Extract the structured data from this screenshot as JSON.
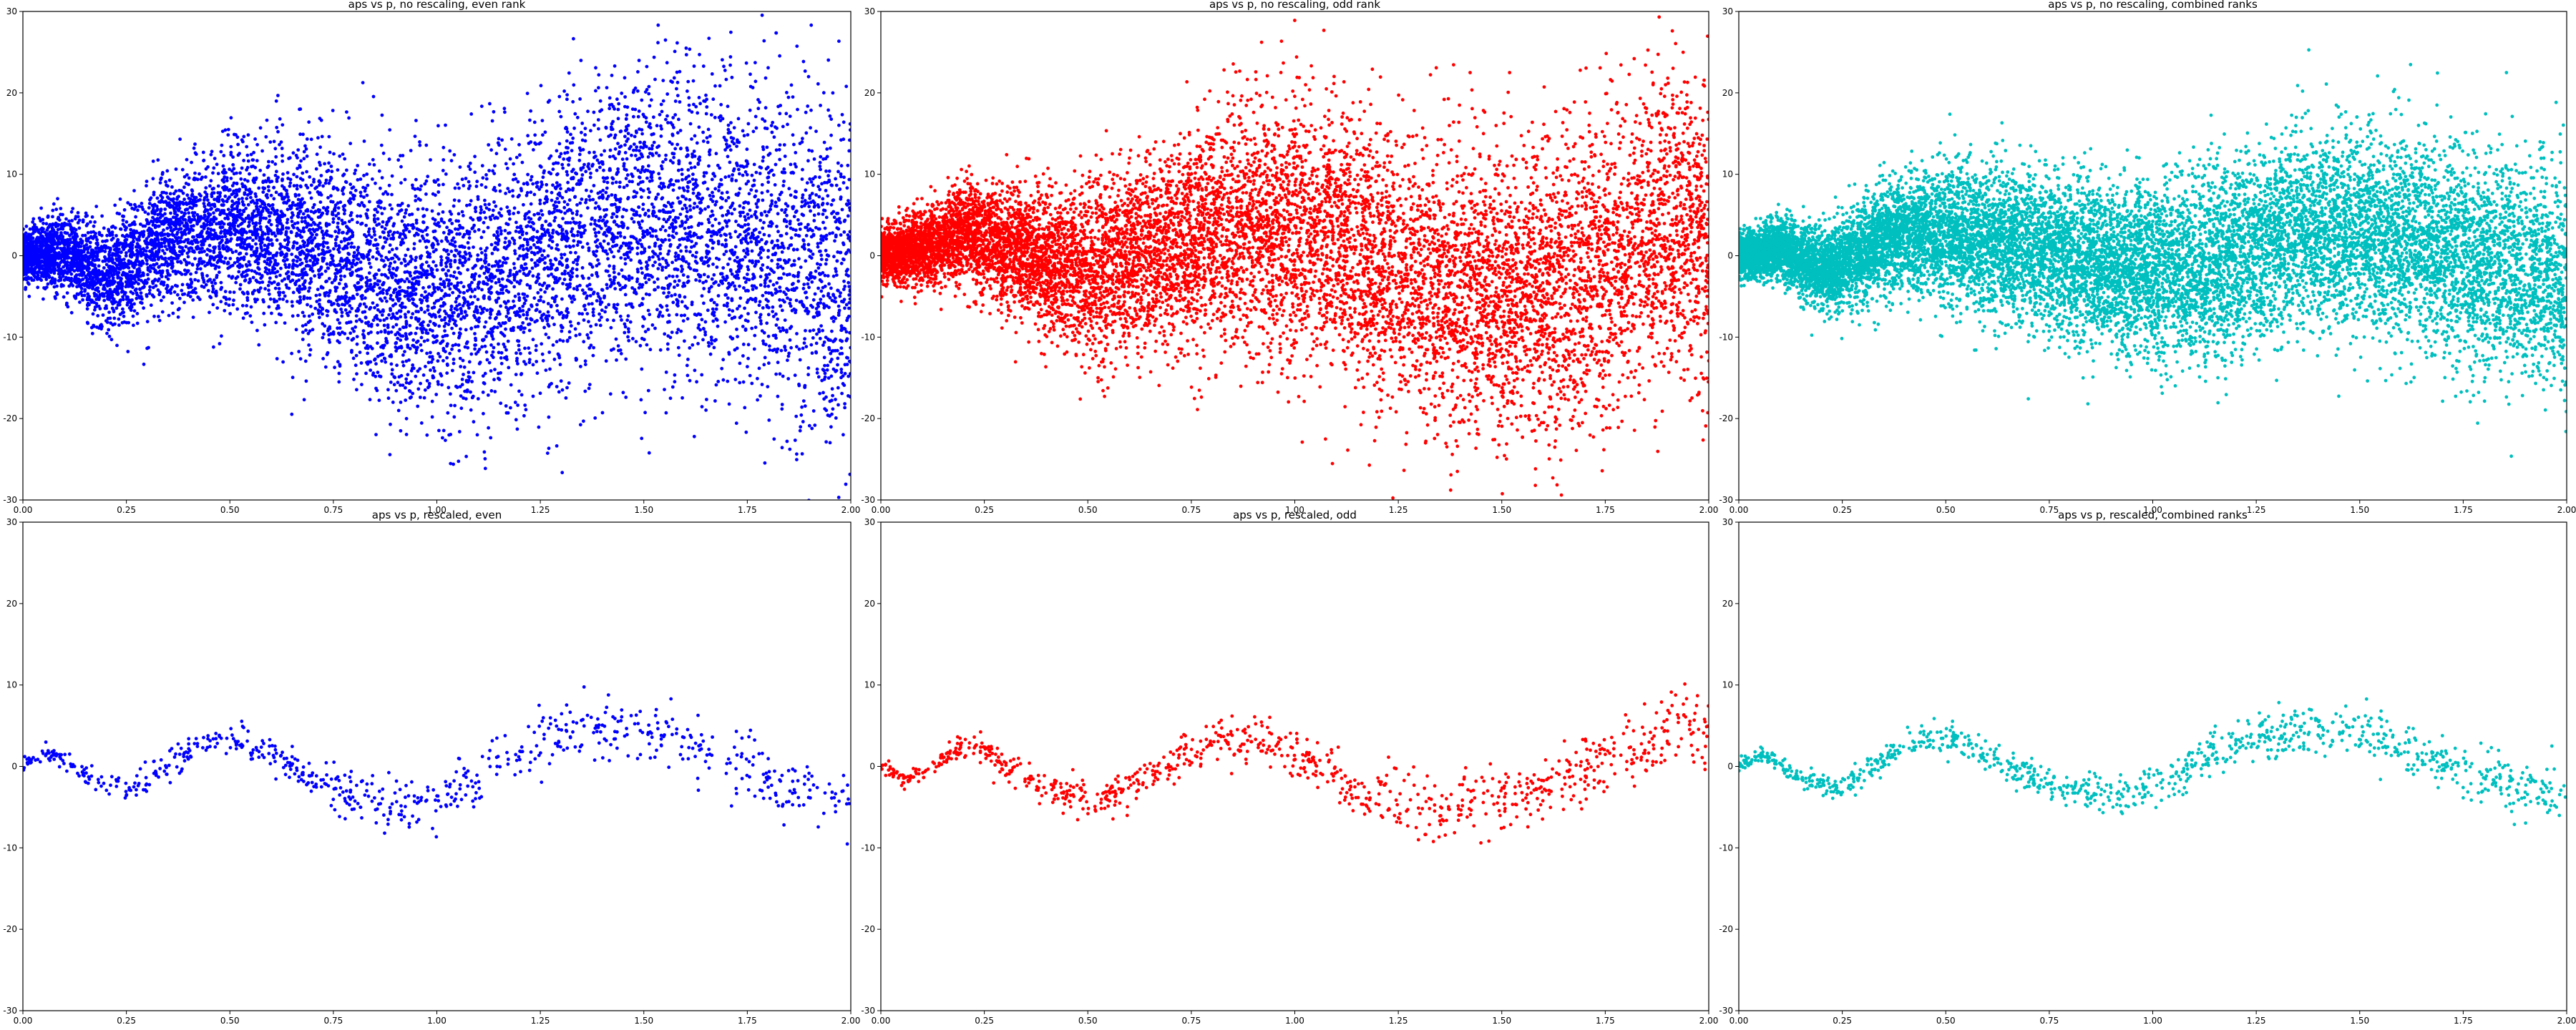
{
  "figure": {
    "background": "#ffffff",
    "grid": false,
    "legend": "none"
  },
  "chart_data": [
    {
      "type": "scatter",
      "title": "aps vs p, no rescaling, even rank",
      "xlim": [
        0,
        2
      ],
      "ylim": [
        -30,
        30
      ],
      "xticks": [
        "0.00",
        "0.25",
        "0.50",
        "0.75",
        "1.00",
        "1.25",
        "1.50",
        "1.75",
        "2.00"
      ],
      "yticks": [
        "-30",
        "-20",
        "-10",
        "0",
        "10",
        "20",
        "30"
      ],
      "color": "#0000ff",
      "points": 9000,
      "trend": {
        "x": [
          0,
          0.1,
          0.2,
          0.35,
          0.5,
          0.7,
          0.9,
          1.1,
          1.3,
          1.5,
          1.7,
          1.9,
          2.0
        ],
        "y": [
          0,
          0.5,
          -3,
          2,
          4,
          1,
          -4,
          -4,
          2,
          5,
          3,
          -1,
          -3
        ]
      },
      "spread": {
        "x": [
          0,
          0.2,
          0.5,
          1.0,
          1.5,
          2.0
        ],
        "y": [
          1.5,
          3,
          5,
          8,
          9,
          11
        ]
      }
    },
    {
      "type": "scatter",
      "title": "aps vs p, no rescaling, odd rank",
      "xlim": [
        0,
        2
      ],
      "ylim": [
        -30,
        30
      ],
      "xticks": [
        "0.00",
        "0.25",
        "0.50",
        "0.75",
        "1.00",
        "1.25",
        "1.50",
        "1.75",
        "2.00"
      ],
      "yticks": [
        "-30",
        "-20",
        "-10",
        "0",
        "10",
        "20",
        "30"
      ],
      "color": "#ff0000",
      "points": 11000,
      "trend": {
        "x": [
          0,
          0.1,
          0.2,
          0.35,
          0.5,
          0.7,
          0.9,
          1.1,
          1.3,
          1.5,
          1.7,
          1.9,
          2.0
        ],
        "y": [
          0,
          1,
          3,
          0,
          -2,
          1,
          4,
          2,
          -3,
          -5,
          -2,
          3,
          4
        ]
      },
      "spread": {
        "x": [
          0,
          0.2,
          0.5,
          1.0,
          1.5,
          2.0
        ],
        "y": [
          1.5,
          3,
          5,
          8,
          9,
          10
        ]
      }
    },
    {
      "type": "scatter",
      "title": "aps vs p, no rescaling, combined ranks",
      "xlim": [
        0,
        2
      ],
      "ylim": [
        -30,
        30
      ],
      "xticks": [
        "0.00",
        "0.25",
        "0.50",
        "0.75",
        "1.00",
        "1.25",
        "1.50",
        "1.75",
        "2.00"
      ],
      "yticks": [
        "-30",
        "-20",
        "-10",
        "0",
        "10",
        "20",
        "30"
      ],
      "color": "#00bfbf",
      "points": 14000,
      "trend": {
        "x": [
          0,
          0.1,
          0.2,
          0.35,
          0.5,
          0.7,
          0.9,
          1.1,
          1.3,
          1.5,
          1.7,
          1.9,
          2.0
        ],
        "y": [
          0,
          1,
          -2,
          2,
          3,
          1,
          -2,
          -2,
          2,
          3,
          1,
          -2,
          -3
        ]
      },
      "spread": {
        "x": [
          0,
          0.2,
          0.5,
          1.0,
          1.5,
          2.0
        ],
        "y": [
          1.2,
          2.5,
          4,
          5.5,
          6,
          7
        ]
      }
    },
    {
      "type": "scatter",
      "title": "aps vs p, rescaled, even",
      "xlim": [
        0,
        2
      ],
      "ylim": [
        -30,
        30
      ],
      "xticks": [
        "0.00",
        "0.25",
        "0.50",
        "0.75",
        "1.00",
        "1.25",
        "1.50",
        "1.75",
        "2.00"
      ],
      "yticks": [
        "-30",
        "-20",
        "-10",
        "0",
        "10",
        "20",
        "30"
      ],
      "color": "#0000ff",
      "points": 700,
      "trend": {
        "x": [
          0,
          0.05,
          0.1,
          0.15,
          0.25,
          0.35,
          0.45,
          0.55,
          0.65,
          0.75,
          0.85,
          0.95,
          1.05,
          1.15,
          1.25,
          1.35,
          1.45,
          1.55,
          1.65,
          1.75,
          1.85,
          1.95,
          2.0
        ],
        "y": [
          0,
          1.5,
          1,
          -1,
          -3,
          0.5,
          3,
          2.5,
          0,
          -2.5,
          -4.5,
          -5,
          -3,
          0,
          3.5,
          4.5,
          5,
          4,
          1.5,
          -1,
          -3,
          -4,
          -4
        ]
      },
      "spread": {
        "x": [
          0,
          0.3,
          1.0,
          1.5,
          2.0
        ],
        "y": [
          0.5,
          0.9,
          1.5,
          2,
          2.3
        ]
      }
    },
    {
      "type": "scatter",
      "title": "aps vs p, rescaled, odd",
      "xlim": [
        0,
        2
      ],
      "ylim": [
        -30,
        30
      ],
      "xticks": [
        "0.00",
        "0.25",
        "0.50",
        "0.75",
        "1.00",
        "1.25",
        "1.50",
        "1.75",
        "2.00"
      ],
      "yticks": [
        "-30",
        "-20",
        "-10",
        "0",
        "10",
        "20",
        "30"
      ],
      "color": "#ff0000",
      "points": 900,
      "trend": {
        "x": [
          0,
          0.05,
          0.1,
          0.15,
          0.2,
          0.25,
          0.35,
          0.45,
          0.55,
          0.65,
          0.75,
          0.85,
          0.95,
          1.05,
          1.15,
          1.25,
          1.35,
          1.45,
          1.55,
          1.65,
          1.75,
          1.85,
          1.95,
          2.0
        ],
        "y": [
          0,
          -1.5,
          -1,
          1,
          2.5,
          2,
          -1.5,
          -3.5,
          -3.5,
          -1,
          2,
          3.5,
          3,
          0.5,
          -2.5,
          -4.5,
          -5,
          -4.5,
          -3.5,
          -1.5,
          0.5,
          3,
          5,
          4
        ]
      },
      "spread": {
        "x": [
          0,
          0.3,
          1.0,
          1.5,
          2.0
        ],
        "y": [
          0.5,
          0.9,
          1.5,
          2,
          2.3
        ]
      }
    },
    {
      "type": "scatter",
      "title": "aps vs p, rescaled, combined ranks",
      "xlim": [
        0,
        2
      ],
      "ylim": [
        -30,
        30
      ],
      "xticks": [
        "0.00",
        "0.25",
        "0.50",
        "0.75",
        "1.00",
        "1.25",
        "1.50",
        "1.75",
        "2.00"
      ],
      "yticks": [
        "-30",
        "-20",
        "-10",
        "0",
        "10",
        "20",
        "30"
      ],
      "color": "#00bfbf",
      "points": 1000,
      "trend": {
        "x": [
          0,
          0.05,
          0.1,
          0.15,
          0.25,
          0.35,
          0.45,
          0.55,
          0.65,
          0.75,
          0.85,
          0.95,
          1.05,
          1.15,
          1.25,
          1.35,
          1.45,
          1.55,
          1.65,
          1.75,
          1.85,
          1.95,
          2.0
        ],
        "y": [
          0,
          1.5,
          0.5,
          -1.5,
          -2.5,
          1,
          3.5,
          3,
          0,
          -2,
          -3.5,
          -3.5,
          -1.5,
          1.5,
          3.5,
          4.5,
          4.5,
          3.5,
          1.5,
          -0.5,
          -2,
          -3,
          -3.5
        ]
      },
      "spread": {
        "x": [
          0,
          0.3,
          1.0,
          1.5,
          2.0
        ],
        "y": [
          0.4,
          0.8,
          1.3,
          1.6,
          1.8
        ]
      }
    }
  ]
}
